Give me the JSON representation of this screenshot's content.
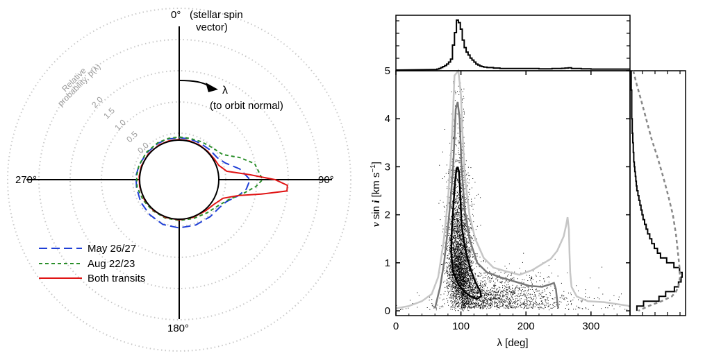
{
  "chart_data": [
    {
      "type": "polar-line",
      "orientation_labels": {
        "top": "0°",
        "top_note_line1": "(stellar spin",
        "top_note_line2": "vector)",
        "right": "90°",
        "bottom": "180°",
        "left": "270°"
      },
      "lambda_arrow": {
        "label": "λ",
        "note": "(to orbit normal)"
      },
      "radial_axis": {
        "title_line1": "Relative",
        "title_line2": "probability, p(λ)",
        "ticks": [
          "0.0",
          "0.5",
          "1.0",
          "1.5",
          "2.0"
        ],
        "tick_values": [
          0,
          0.5,
          1.0,
          1.5,
          2.0
        ]
      },
      "series": [
        {
          "name": "May 26/27",
          "color": "#1f3fd6",
          "style": "long-dash",
          "points": [
            [
              0,
              0.04
            ],
            [
              15,
              0.04
            ],
            [
              30,
              0.04
            ],
            [
              45,
              0.05
            ],
            [
              60,
              0.07
            ],
            [
              70,
              0.15
            ],
            [
              80,
              0.35
            ],
            [
              90,
              0.5
            ],
            [
              98,
              0.45
            ],
            [
              105,
              0.35
            ],
            [
              115,
              0.2
            ],
            [
              125,
              0.15
            ],
            [
              140,
              0.14
            ],
            [
              160,
              0.14
            ],
            [
              180,
              0.14
            ],
            [
              200,
              0.13
            ],
            [
              220,
              0.1
            ],
            [
              240,
              0.08
            ],
            [
              260,
              0.06
            ],
            [
              275,
              0.06
            ],
            [
              290,
              0.05
            ],
            [
              310,
              0.04
            ],
            [
              330,
              0.04
            ],
            [
              345,
              0.04
            ],
            [
              360,
              0.04
            ]
          ]
        },
        {
          "name": "Aug 22/23",
          "color": "#2a8f2a",
          "style": "short-dash",
          "points": [
            [
              0,
              0.05
            ],
            [
              15,
              0.05
            ],
            [
              30,
              0.07
            ],
            [
              45,
              0.1
            ],
            [
              60,
              0.17
            ],
            [
              70,
              0.4
            ],
            [
              78,
              0.6
            ],
            [
              85,
              0.65
            ],
            [
              90,
              0.7
            ],
            [
              95,
              0.6
            ],
            [
              103,
              0.4
            ],
            [
              112,
              0.22
            ],
            [
              125,
              0.11
            ],
            [
              140,
              0.06
            ],
            [
              160,
              0.03
            ],
            [
              180,
              0.02
            ],
            [
              200,
              0.02
            ],
            [
              220,
              0.02
            ],
            [
              240,
              0.03
            ],
            [
              260,
              0.05
            ],
            [
              275,
              0.05
            ],
            [
              290,
              0.05
            ],
            [
              310,
              0.05
            ],
            [
              330,
              0.05
            ],
            [
              345,
              0.05
            ],
            [
              360,
              0.05
            ]
          ]
        },
        {
          "name": "Both transits",
          "color": "#e01414",
          "style": "solid",
          "points": [
            [
              0,
              0.01
            ],
            [
              15,
              0.01
            ],
            [
              30,
              0.01
            ],
            [
              45,
              0.01
            ],
            [
              60,
              0.02
            ],
            [
              70,
              0.04
            ],
            [
              80,
              0.14
            ],
            [
              86,
              0.5
            ],
            [
              90,
              0.9
            ],
            [
              93,
              1.1
            ],
            [
              96,
              1.1
            ],
            [
              100,
              0.7
            ],
            [
              105,
              0.35
            ],
            [
              113,
              0.13
            ],
            [
              125,
              0.05
            ],
            [
              140,
              0.02
            ],
            [
              160,
              0.01
            ],
            [
              180,
              0.01
            ],
            [
              200,
              0.01
            ],
            [
              220,
              0.01
            ],
            [
              240,
              0.01
            ],
            [
              260,
              0.01
            ],
            [
              275,
              0.01
            ],
            [
              290,
              0.01
            ],
            [
              310,
              0.01
            ],
            [
              330,
              0.01
            ],
            [
              345,
              0.01
            ],
            [
              360,
              0.01
            ]
          ]
        }
      ],
      "legend": [
        "May 26/27",
        "Aug 22/23",
        "Both transits"
      ],
      "legend_placement": "bottom-left"
    },
    {
      "type": "scatter-density",
      "xlabel": "λ [deg]",
      "ylabel_parts": {
        "v": "v",
        "sin": " sin ",
        "i": "i",
        "units": "[km s",
        "exp": "−1",
        "close": "]"
      },
      "xlim": [
        0,
        360
      ],
      "ylim": [
        -0.1,
        5
      ],
      "xticks": [
        0,
        100,
        200,
        300
      ],
      "yticks": [
        0,
        1,
        2,
        3,
        4,
        5
      ],
      "contours": [
        {
          "level": "inner",
          "color": "#000000",
          "points": [
            [
              95,
              3.0
            ],
            [
              97,
              2.9
            ],
            [
              99,
              2.4
            ],
            [
              101,
              1.8
            ],
            [
              104,
              1.5
            ],
            [
              108,
              1.2
            ],
            [
              114,
              0.9
            ],
            [
              122,
              0.6
            ],
            [
              130,
              0.4
            ],
            [
              131,
              0.3
            ],
            [
              125,
              0.25
            ],
            [
              115,
              0.3
            ],
            [
              105,
              0.4
            ],
            [
              96,
              0.55
            ],
            [
              88,
              0.8
            ],
            [
              85,
              1.2
            ],
            [
              86,
              1.7
            ],
            [
              89,
              2.3
            ],
            [
              91,
              2.7
            ],
            [
              93,
              2.95
            ],
            [
              95,
              3.0
            ]
          ]
        },
        {
          "level": "middle",
          "color": "#777777",
          "points": [
            [
              60,
              0.05
            ],
            [
              68,
              0.5
            ],
            [
              74,
              1.0
            ],
            [
              79,
              1.6
            ],
            [
              84,
              2.3
            ],
            [
              88,
              3.0
            ],
            [
              90,
              3.6
            ],
            [
              92,
              4.2
            ],
            [
              95,
              4.35
            ],
            [
              98,
              4.0
            ],
            [
              101,
              3.0
            ],
            [
              106,
              2.1
            ],
            [
              113,
              1.5
            ],
            [
              125,
              1.0
            ],
            [
              140,
              0.8
            ],
            [
              160,
              0.7
            ],
            [
              185,
              0.6
            ],
            [
              205,
              0.52
            ],
            [
              225,
              0.5
            ],
            [
              237,
              0.55
            ],
            [
              243,
              0.58
            ],
            [
              246,
              0.45
            ],
            [
              249,
              0.1
            ],
            [
              250,
              0.05
            ]
          ]
        },
        {
          "level": "outer",
          "color": "#c6c6c6",
          "points": [
            [
              0,
              0.05
            ],
            [
              20,
              0.1
            ],
            [
              40,
              0.2
            ],
            [
              55,
              0.35
            ],
            [
              65,
              0.7
            ],
            [
              73,
              1.4
            ],
            [
              80,
              2.3
            ],
            [
              85,
              3.3
            ],
            [
              88,
              4.2
            ],
            [
              90,
              4.9
            ],
            [
              96,
              5.0
            ],
            [
              100,
              4.5
            ],
            [
              102,
              3.8
            ],
            [
              106,
              2.8
            ],
            [
              113,
              2.0
            ],
            [
              122,
              1.5
            ],
            [
              135,
              1.1
            ],
            [
              150,
              0.9
            ],
            [
              170,
              0.82
            ],
            [
              190,
              0.75
            ],
            [
              210,
              0.85
            ],
            [
              228,
              1.0
            ],
            [
              238,
              1.08
            ],
            [
              248,
              1.25
            ],
            [
              258,
              1.55
            ],
            [
              262,
              1.8
            ],
            [
              264,
              1.95
            ],
            [
              266,
              1.7
            ],
            [
              267,
              1.2
            ],
            [
              268,
              0.8
            ],
            [
              270,
              0.5
            ],
            [
              278,
              0.3
            ],
            [
              295,
              0.2
            ],
            [
              320,
              0.18
            ],
            [
              345,
              0.13
            ],
            [
              360,
              0.1
            ]
          ]
        }
      ]
    },
    {
      "type": "histogram",
      "name": "lambda-marginal",
      "bin_width": 3,
      "bins": [
        [
          60,
          0.01
        ],
        [
          63,
          0.02
        ],
        [
          66,
          0.03
        ],
        [
          69,
          0.05
        ],
        [
          72,
          0.07
        ],
        [
          75,
          0.09
        ],
        [
          78,
          0.12
        ],
        [
          81,
          0.16
        ],
        [
          84,
          0.22
        ],
        [
          87,
          0.5
        ],
        [
          90,
          0.75
        ],
        [
          93,
          1.0
        ],
        [
          96,
          0.95
        ],
        [
          99,
          0.82
        ],
        [
          102,
          0.6
        ],
        [
          105,
          0.45
        ],
        [
          108,
          0.36
        ],
        [
          111,
          0.3
        ],
        [
          114,
          0.24
        ],
        [
          117,
          0.2
        ],
        [
          120,
          0.16
        ],
        [
          123,
          0.12
        ],
        [
          126,
          0.1
        ],
        [
          129,
          0.08
        ],
        [
          132,
          0.07
        ],
        [
          135,
          0.06
        ],
        [
          140,
          0.05
        ],
        [
          150,
          0.04
        ],
        [
          160,
          0.03
        ],
        [
          180,
          0.03
        ],
        [
          200,
          0.03
        ],
        [
          220,
          0.025
        ],
        [
          240,
          0.03
        ],
        [
          255,
          0.035
        ],
        [
          260,
          0.04
        ],
        [
          265,
          0.045
        ],
        [
          270,
          0.03
        ],
        [
          285,
          0.025
        ],
        [
          300,
          0.02
        ],
        [
          330,
          0.02
        ],
        [
          360,
          0.02
        ]
      ]
    },
    {
      "type": "histogram-horizontal",
      "name": "vsini-marginal",
      "series": [
        {
          "name": "posterior",
          "color": "#000000",
          "style": "solid-step",
          "bins": [
            [
              0.0,
              0.12
            ],
            [
              0.1,
              0.25
            ],
            [
              0.2,
              0.55
            ],
            [
              0.3,
              0.68
            ],
            [
              0.4,
              0.85
            ],
            [
              0.5,
              0.93
            ],
            [
              0.6,
              0.98
            ],
            [
              0.7,
              1.0
            ],
            [
              0.8,
              0.95
            ],
            [
              0.9,
              0.84
            ],
            [
              1.0,
              0.7
            ],
            [
              1.1,
              0.58
            ],
            [
              1.2,
              0.52
            ],
            [
              1.3,
              0.46
            ],
            [
              1.4,
              0.41
            ],
            [
              1.5,
              0.37
            ],
            [
              1.6,
              0.33
            ],
            [
              1.7,
              0.3
            ],
            [
              1.8,
              0.27
            ],
            [
              1.9,
              0.24
            ],
            [
              2.0,
              0.22
            ],
            [
              2.1,
              0.2
            ],
            [
              2.2,
              0.18
            ],
            [
              2.3,
              0.16
            ],
            [
              2.4,
              0.14
            ],
            [
              2.5,
              0.12
            ],
            [
              2.6,
              0.11
            ],
            [
              2.7,
              0.1
            ],
            [
              2.8,
              0.09
            ],
            [
              2.9,
              0.08
            ],
            [
              3.0,
              0.07
            ],
            [
              3.1,
              0.06
            ],
            [
              3.2,
              0.06
            ],
            [
              3.3,
              0.05
            ],
            [
              3.4,
              0.05
            ],
            [
              3.5,
              0.04
            ],
            [
              3.6,
              0.04
            ],
            [
              3.7,
              0.03
            ],
            [
              3.8,
              0.03
            ],
            [
              3.9,
              0.03
            ],
            [
              4.0,
              0.02
            ],
            [
              4.2,
              0.02
            ],
            [
              4.4,
              0.02
            ],
            [
              4.6,
              0.01
            ],
            [
              4.8,
              0.01
            ]
          ]
        },
        {
          "name": "prior",
          "color": "#888888",
          "style": "dashed-step",
          "points": [
            [
              5.0,
              0.05
            ],
            [
              4.7,
              0.12
            ],
            [
              4.4,
              0.2
            ],
            [
              4.0,
              0.3
            ],
            [
              3.6,
              0.4
            ],
            [
              3.2,
              0.52
            ],
            [
              2.8,
              0.63
            ],
            [
              2.4,
              0.73
            ],
            [
              2.0,
              0.82
            ],
            [
              1.6,
              0.88
            ],
            [
              1.2,
              0.92
            ],
            [
              0.9,
              0.95
            ],
            [
              0.7,
              0.96
            ],
            [
              0.5,
              0.93
            ],
            [
              0.4,
              0.88
            ],
            [
              0.3,
              0.8
            ],
            [
              0.2,
              0.6
            ],
            [
              0.1,
              0.35
            ],
            [
              0.0,
              0.15
            ]
          ]
        }
      ]
    }
  ]
}
